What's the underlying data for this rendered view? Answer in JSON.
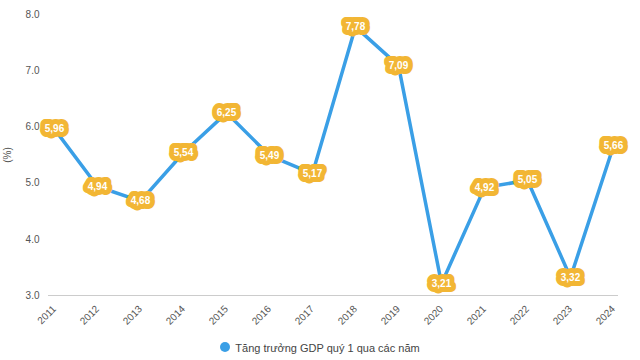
{
  "chart_data": {
    "type": "line",
    "categories": [
      "2011",
      "2012",
      "2013",
      "2014",
      "2015",
      "2016",
      "2017",
      "2018",
      "2019",
      "2020",
      "2021",
      "2022",
      "2023",
      "2024"
    ],
    "series": [
      {
        "name": "Tăng trưởng GDP quý 1 qua các năm",
        "color": "#3a9fe6",
        "values": [
          5.96,
          4.94,
          4.68,
          5.54,
          6.25,
          5.49,
          5.17,
          7.78,
          7.09,
          3.21,
          4.92,
          5.05,
          3.32,
          5.66
        ],
        "value_labels": [
          "5,96",
          "4,94",
          "4,68",
          "5,54",
          "6,25",
          "5,49",
          "5,17",
          "7,78",
          "7,09",
          "3,21",
          "4,92",
          "5,05",
          "3,32",
          "5,66"
        ]
      }
    ],
    "y_label": "(%)",
    "ylim": [
      3,
      8
    ],
    "yticks": [
      3,
      4,
      5,
      6,
      7,
      8
    ],
    "data_labels": true,
    "grid": false,
    "legend": "bottom"
  }
}
